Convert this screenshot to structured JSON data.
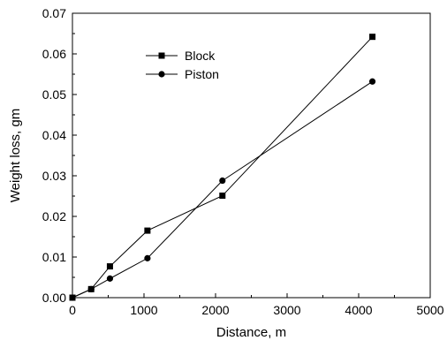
{
  "chart_data": {
    "type": "line",
    "title": "",
    "xlabel": "Distance, m",
    "ylabel": "Weight loss, gm",
    "xlim": [
      0,
      5000
    ],
    "ylim": [
      0,
      0.07
    ],
    "xticks": [
      0,
      1000,
      2000,
      3000,
      4000,
      5000
    ],
    "yticks": [
      0.0,
      0.01,
      0.02,
      0.03,
      0.04,
      0.05,
      0.06,
      0.07
    ],
    "xtick_labels": [
      "0",
      "1000",
      "2000",
      "3000",
      "4000",
      "5000"
    ],
    "ytick_labels": [
      "0.00",
      "0.01",
      "0.02",
      "0.03",
      "0.04",
      "0.05",
      "0.06",
      "0.07"
    ],
    "grid": false,
    "legend_position": "top-center",
    "series": [
      {
        "name": "Block",
        "marker": "square",
        "color": "#000000",
        "x": [
          0,
          262,
          524,
          1048,
          2096,
          4192
        ],
        "y": [
          0.0,
          0.0021,
          0.0077,
          0.0165,
          0.0251,
          0.0642
        ]
      },
      {
        "name": "Piston",
        "marker": "circle",
        "color": "#000000",
        "x": [
          0,
          262,
          524,
          1048,
          2096,
          4192
        ],
        "y": [
          0.0,
          0.0021,
          0.0047,
          0.0097,
          0.0288,
          0.0532
        ]
      }
    ]
  }
}
